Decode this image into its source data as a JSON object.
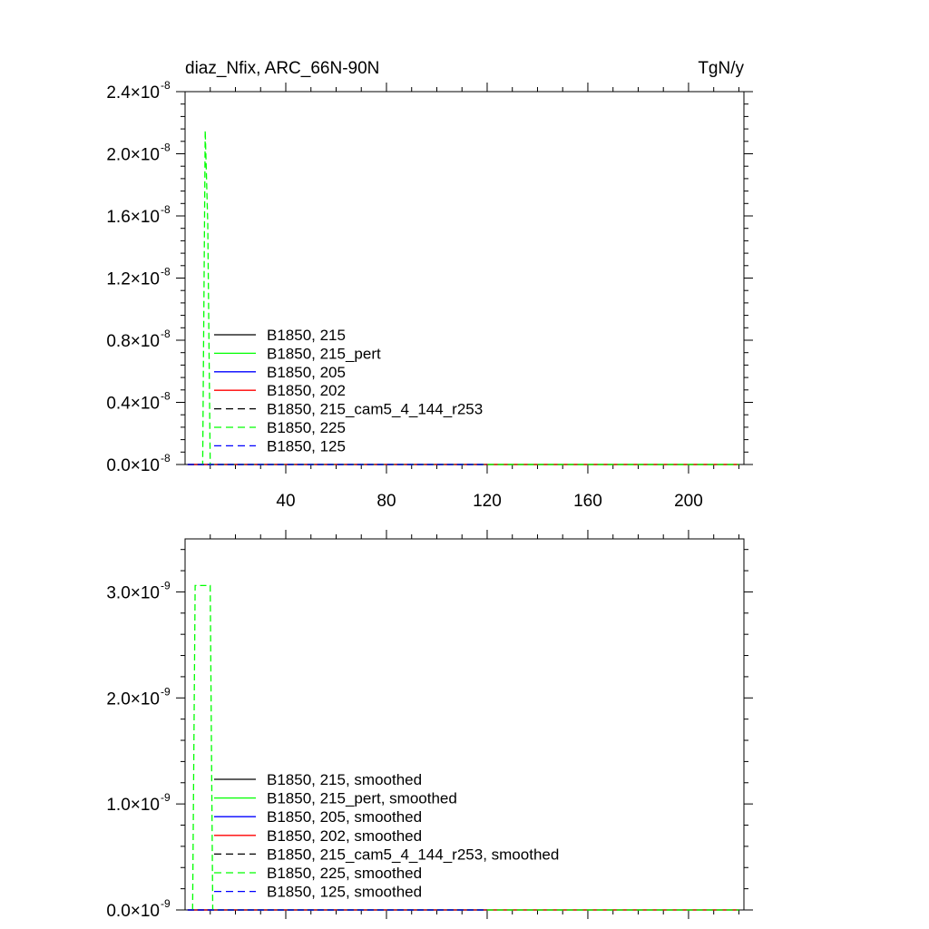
{
  "chart_data": [
    {
      "type": "line",
      "title": "diaz_Nfix, ARC_66N-90N",
      "units": "TgN/y",
      "xlim": [
        0,
        222
      ],
      "ylim": [
        0,
        2.4e-08
      ],
      "xticks": [
        40,
        80,
        120,
        160,
        200
      ],
      "xtick_labels": [
        "40",
        "80",
        "120",
        "160",
        "200"
      ],
      "yticks": [
        0,
        4e-09,
        8e-09,
        1.2e-08,
        1.6e-08,
        2e-08,
        2.4e-08
      ],
      "ytick_mantissas": [
        "0.0",
        "0.4",
        "0.8",
        "1.2",
        "1.6",
        "2.0",
        "2.4"
      ],
      "ytick_exponent": "-8",
      "grid": false,
      "legend_position": "lower-left",
      "series": [
        {
          "name": "B1850, 215",
          "color": "#000000",
          "dash": "solid",
          "x": [
            1,
            220
          ],
          "y": [
            0,
            0
          ]
        },
        {
          "name": "B1850, 215_pert",
          "color": "#00ff00",
          "dash": "solid",
          "x": [
            1,
            220
          ],
          "y": [
            0,
            0
          ]
        },
        {
          "name": "B1850, 205",
          "color": "#0000ff",
          "dash": "solid",
          "x": [
            1,
            120
          ],
          "y": [
            0,
            0
          ]
        },
        {
          "name": "B1850, 202",
          "color": "#ff0000",
          "dash": "solid",
          "x": [
            1,
            220
          ],
          "y": [
            0,
            0
          ]
        },
        {
          "name": "B1850, 215_cam5_4_144_r253",
          "color": "#000000",
          "dash": "dashed",
          "x": [
            1,
            120
          ],
          "y": [
            0,
            0
          ]
        },
        {
          "name": "B1850, 225",
          "color": "#00ff00",
          "dash": "dashed",
          "x": [
            6,
            7,
            8,
            9,
            10,
            220
          ],
          "y": [
            0,
            0,
            2.15e-08,
            1.55e-08,
            0,
            0
          ]
        },
        {
          "name": "B1850, 125",
          "color": "#0000ff",
          "dash": "dashed",
          "x": [
            1,
            120
          ],
          "y": [
            0,
            0
          ]
        }
      ]
    },
    {
      "type": "line",
      "title": "",
      "xlim": [
        0,
        222
      ],
      "ylim": [
        0,
        3.5e-09
      ],
      "xticks": [
        40,
        80,
        120,
        160,
        200
      ],
      "xtick_labels": [],
      "yticks": [
        0,
        1e-09,
        2e-09,
        3e-09
      ],
      "ytick_mantissas": [
        "0.0",
        "1.0",
        "2.0",
        "3.0"
      ],
      "ytick_exponent": "-9",
      "grid": false,
      "legend_position": "lower-left",
      "series": [
        {
          "name": "B1850, 215, smoothed",
          "color": "#000000",
          "dash": "solid",
          "x": [
            1,
            220
          ],
          "y": [
            0,
            0
          ]
        },
        {
          "name": "B1850, 215_pert, smoothed",
          "color": "#00ff00",
          "dash": "solid",
          "x": [
            1,
            220
          ],
          "y": [
            0,
            0
          ]
        },
        {
          "name": "B1850, 205, smoothed",
          "color": "#0000ff",
          "dash": "solid",
          "x": [
            1,
            120
          ],
          "y": [
            0,
            0
          ]
        },
        {
          "name": "B1850, 202, smoothed",
          "color": "#ff0000",
          "dash": "solid",
          "x": [
            1,
            220
          ],
          "y": [
            0,
            0
          ]
        },
        {
          "name": "B1850, 215_cam5_4_144_r253, smoothed",
          "color": "#000000",
          "dash": "dashed",
          "x": [
            1,
            120
          ],
          "y": [
            0,
            0
          ]
        },
        {
          "name": "B1850, 225, smoothed",
          "color": "#00ff00",
          "dash": "dashed",
          "x": [
            3,
            4,
            10,
            11,
            220
          ],
          "y": [
            0,
            3.06e-09,
            3.06e-09,
            0,
            0
          ]
        },
        {
          "name": "B1850, 125, smoothed",
          "color": "#0000ff",
          "dash": "dashed",
          "x": [
            1,
            120
          ],
          "y": [
            0,
            0
          ]
        }
      ]
    }
  ]
}
